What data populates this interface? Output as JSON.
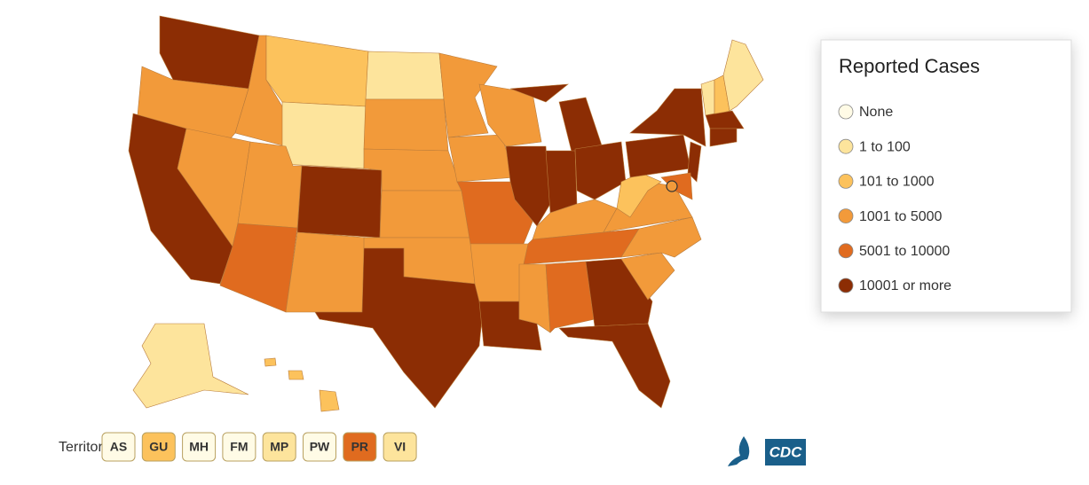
{
  "legend": {
    "title": "Reported Cases",
    "items": [
      {
        "label": "None",
        "color": "#fffbe6"
      },
      {
        "label": "1 to 100",
        "color": "#fde49c"
      },
      {
        "label": "101 to 1000",
        "color": "#fcc25c"
      },
      {
        "label": "1001 to 5000",
        "color": "#f29a3a"
      },
      {
        "label": "5001 to 10000",
        "color": "#e06b1f"
      },
      {
        "label": "10001 or more",
        "color": "#8c2d04"
      }
    ]
  },
  "territories": {
    "label": "Territories",
    "items": [
      {
        "label": "AS",
        "color": "#fffbe6"
      },
      {
        "label": "GU",
        "color": "#fcc25c"
      },
      {
        "label": "MH",
        "color": "#fffbe6"
      },
      {
        "label": "FM",
        "color": "#fffbe6"
      },
      {
        "label": "MP",
        "color": "#fde49c"
      },
      {
        "label": "PW",
        "color": "#fffbe6"
      },
      {
        "label": "PR",
        "color": "#e06b1f"
      },
      {
        "label": "VI",
        "color": "#fde49c"
      }
    ]
  },
  "logo": "CDC"
}
